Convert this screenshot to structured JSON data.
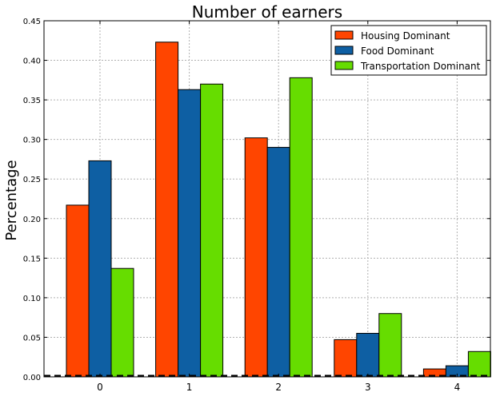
{
  "chart_data": {
    "type": "bar",
    "title": "Number of earners",
    "xlabel": "",
    "ylabel": "Percentage",
    "categories": [
      "0",
      "1",
      "2",
      "3",
      "4"
    ],
    "ylim": [
      0,
      0.45
    ],
    "yticks": [
      "0.00",
      "0.05",
      "0.10",
      "0.15",
      "0.20",
      "0.25",
      "0.30",
      "0.35",
      "0.40",
      "0.45"
    ],
    "grid": true,
    "legend_position": "top-right",
    "series": [
      {
        "name": "Housing Dominant",
        "color": "#ff4500",
        "values": [
          0.217,
          0.423,
          0.302,
          0.047,
          0.01
        ]
      },
      {
        "name": "Food Dominant",
        "color": "#0e5fa3",
        "values": [
          0.273,
          0.363,
          0.29,
          0.055,
          0.014
        ]
      },
      {
        "name": "Transportation Dominant",
        "color": "#66dd00",
        "values": [
          0.137,
          0.37,
          0.378,
          0.08,
          0.032
        ]
      }
    ]
  }
}
